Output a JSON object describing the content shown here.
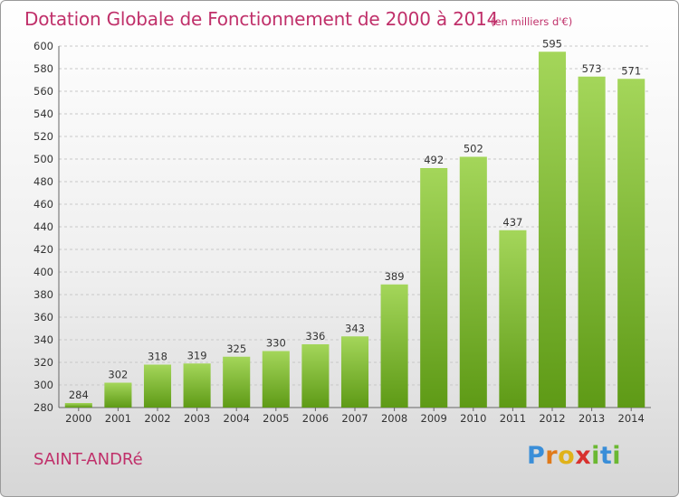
{
  "title": "Dotation Globale de Fonctionnement de 2000 à 2014",
  "subtitle": "(en milliers d'€)",
  "commune": "SAINT-ANDRé",
  "brand": {
    "letters": [
      "P",
      "r",
      "o",
      "x",
      "i",
      "t",
      "i"
    ],
    "colors": [
      "#3a8ed8",
      "#e07a1a",
      "#e0b21a",
      "#d8312e",
      "#6bb832",
      "#3a8ed8",
      "#6bb832"
    ]
  },
  "colors": {
    "title": "#c0306a",
    "bar_top": "#a4d65a",
    "bar_bottom": "#5e9a16",
    "grid": "#c8c8c8"
  },
  "chart_data": {
    "type": "bar",
    "title": "Dotation Globale de Fonctionnement de 2000 à 2014",
    "subtitle": "(en milliers d'€)",
    "categories": [
      "2000",
      "2001",
      "2002",
      "2003",
      "2004",
      "2005",
      "2006",
      "2007",
      "2008",
      "2009",
      "2010",
      "2011",
      "2012",
      "2013",
      "2014"
    ],
    "values": [
      284,
      302,
      318,
      319,
      325,
      330,
      336,
      343,
      389,
      492,
      502,
      437,
      595,
      573,
      571
    ],
    "ylim": [
      280,
      600
    ],
    "yticks": [
      280,
      300,
      320,
      340,
      360,
      380,
      400,
      420,
      440,
      460,
      480,
      500,
      520,
      540,
      560,
      580,
      600
    ],
    "grid": true,
    "xlabel": "",
    "ylabel": ""
  }
}
